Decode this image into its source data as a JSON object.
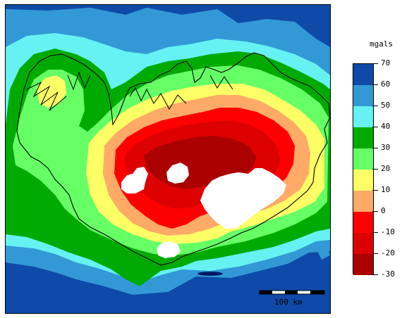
{
  "legend": {
    "unit": "mgals",
    "labels": [
      "70",
      "60",
      "50",
      "40",
      "30",
      "20",
      "10",
      "0",
      "-10",
      "-20",
      "-30"
    ],
    "bands": [
      {
        "from": 60,
        "to": 70,
        "color": "#0f4aa8"
      },
      {
        "from": 50,
        "to": 60,
        "color": "#3399d6"
      },
      {
        "from": 40,
        "to": 50,
        "color": "#66f2f2"
      },
      {
        "from": 30,
        "to": 40,
        "color": "#00aa00"
      },
      {
        "from": 20,
        "to": 30,
        "color": "#66ff66"
      },
      {
        "from": 10,
        "to": 20,
        "color": "#ffff66"
      },
      {
        "from": 0,
        "to": 10,
        "color": "#ffaa66"
      },
      {
        "from": -10,
        "to": 0,
        "color": "#ff0000"
      },
      {
        "from": -20,
        "to": -10,
        "color": "#dd0000"
      },
      {
        "from": -30,
        "to": -20,
        "color": "#aa0000"
      }
    ]
  },
  "scale_bar": {
    "label": "100 km"
  }
}
